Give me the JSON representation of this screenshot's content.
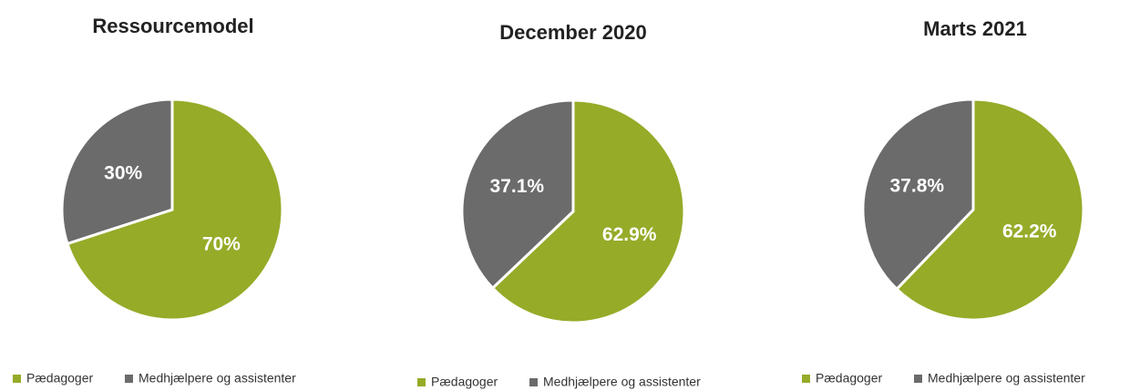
{
  "chart_data": [
    {
      "type": "pie",
      "title": "Ressourcemodel",
      "categories": [
        "Pædagoger",
        "Medhjælpere og assistenter"
      ],
      "values": [
        70,
        30
      ],
      "value_labels": [
        "70%",
        "30%"
      ],
      "colors": [
        "#96ab28",
        "#6b6b6b"
      ]
    },
    {
      "type": "pie",
      "title": "December 2020",
      "categories": [
        "Pædagoger",
        "Medhjælpere og assistenter"
      ],
      "values": [
        62.9,
        37.1
      ],
      "value_labels": [
        "62.9%",
        "37.1%"
      ],
      "colors": [
        "#96ab28",
        "#6b6b6b"
      ]
    },
    {
      "type": "pie",
      "title": "Marts 2021",
      "categories": [
        "Pædagoger",
        "Medhjælpere og assistenter"
      ],
      "values": [
        62.2,
        37.8
      ],
      "value_labels": [
        "62.2%",
        "37.8%"
      ],
      "colors": [
        "#96ab28",
        "#6b6b6b"
      ]
    }
  ]
}
